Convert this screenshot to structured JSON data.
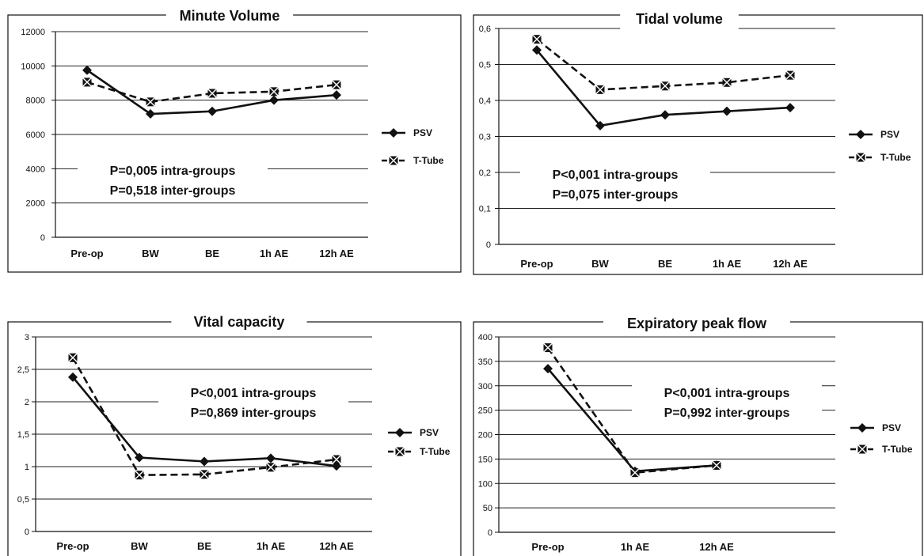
{
  "chart_data": [
    {
      "type": "line",
      "title": "Minute Volume",
      "categories": [
        "Pre-op",
        "BW",
        "BE",
        "1h AE",
        "12h AE"
      ],
      "ylim": [
        0,
        12000
      ],
      "yticks": [
        "0",
        "2000",
        "4000",
        "6000",
        "8000",
        "10000",
        "12000"
      ],
      "grid": true,
      "legend_position": "right",
      "series": [
        {
          "name": "PSV",
          "values": [
            9750,
            7200,
            7350,
            8000,
            8300
          ],
          "style": "solid",
          "marker": "diamond"
        },
        {
          "name": "T-Tube",
          "values": [
            9050,
            7900,
            8400,
            8500,
            8900
          ],
          "style": "dashed",
          "marker": "square"
        }
      ],
      "annotations": [
        "P=0,005 intra-groups",
        "P=0,518  inter-groups"
      ]
    },
    {
      "type": "line",
      "title": "Tidal volume",
      "categories": [
        "Pre-op",
        "BW",
        "BE",
        "1h AE",
        "12h AE"
      ],
      "ylim": [
        0,
        0.6
      ],
      "yticks": [
        "0",
        "0,1",
        "0,2",
        "0,3",
        "0,4",
        "0,5",
        "0,6"
      ],
      "grid": true,
      "legend_position": "right",
      "series": [
        {
          "name": "PSV",
          "values": [
            0.54,
            0.33,
            0.36,
            0.37,
            0.38
          ],
          "style": "solid",
          "marker": "diamond"
        },
        {
          "name": "T-Tube",
          "values": [
            0.57,
            0.43,
            0.44,
            0.45,
            0.47
          ],
          "style": "dashed",
          "marker": "square"
        }
      ],
      "annotations": [
        "P<0,001 intra-groups",
        "P=0,075 inter-groups"
      ]
    },
    {
      "type": "line",
      "title": "Vital capacity",
      "categories": [
        "Pre-op",
        "BW",
        "BE",
        "1h AE",
        "12h AE"
      ],
      "ylim": [
        0,
        3
      ],
      "yticks": [
        "0",
        "0,5",
        "1",
        "1,5",
        "2",
        "2,5",
        "3"
      ],
      "grid": true,
      "legend_position": "right",
      "series": [
        {
          "name": "PSV",
          "values": [
            2.38,
            1.14,
            1.08,
            1.13,
            1.01
          ],
          "style": "solid",
          "marker": "diamond"
        },
        {
          "name": "T-Tube",
          "values": [
            2.68,
            0.87,
            0.88,
            0.99,
            1.11
          ],
          "style": "dashed",
          "marker": "square"
        }
      ],
      "annotations": [
        "P<0,001 intra-groups",
        "P=0,869 inter-groups"
      ]
    },
    {
      "type": "line",
      "title": "Expiratory peak flow",
      "categories": [
        "Pre-op",
        "1h AE",
        "12h AE"
      ],
      "ylim": [
        0,
        400
      ],
      "yticks": [
        "0",
        "50",
        "100",
        "150",
        "200",
        "250",
        "300",
        "350",
        "400"
      ],
      "grid": true,
      "legend_position": "right",
      "series": [
        {
          "name": "PSV",
          "values": [
            335,
            125,
            137
          ],
          "style": "solid",
          "marker": "diamond"
        },
        {
          "name": "T-Tube",
          "values": [
            378,
            122,
            137
          ],
          "style": "dashed",
          "marker": "square"
        }
      ],
      "annotations": [
        "P<0,001 intra-groups",
        "P=0,992 inter-groups"
      ]
    }
  ]
}
